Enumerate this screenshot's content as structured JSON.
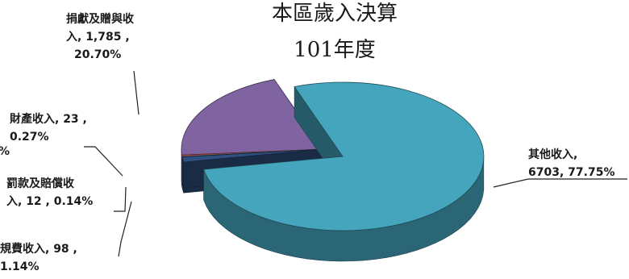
{
  "chart_data": {
    "type": "pie",
    "title": "本區歲入決算",
    "subtitle": "101年度",
    "slices": [
      {
        "label_lines": [
          "其他收入,",
          "6703, 77.75%"
        ],
        "value": 6703,
        "percent": 77.75,
        "color": "#44a5bd",
        "exploded": true
      },
      {
        "label_lines": [
          "規費收入, 98 ,",
          "1.14%"
        ],
        "value": 98,
        "percent": 1.14,
        "color": "#2f4f80",
        "exploded": false
      },
      {
        "label_lines": [
          "罰款及賠償收",
          "入, 12 , 0.14%"
        ],
        "value": 12,
        "percent": 0.14,
        "color": "#a9c9d5",
        "exploded": false
      },
      {
        "label_lines": [
          "財產收入, 23 ,",
          "0.27%"
        ],
        "value": 23,
        "percent": 0.27,
        "color": "#d9534a",
        "exploded": false
      },
      {
        "label_lines": [
          "捐獻及贈與收",
          "入, 1,785 ,",
          "20.70%"
        ],
        "value": 1785,
        "percent": 20.7,
        "color": "#8064a2",
        "exploded": false
      }
    ],
    "edge_fragment": "%"
  }
}
